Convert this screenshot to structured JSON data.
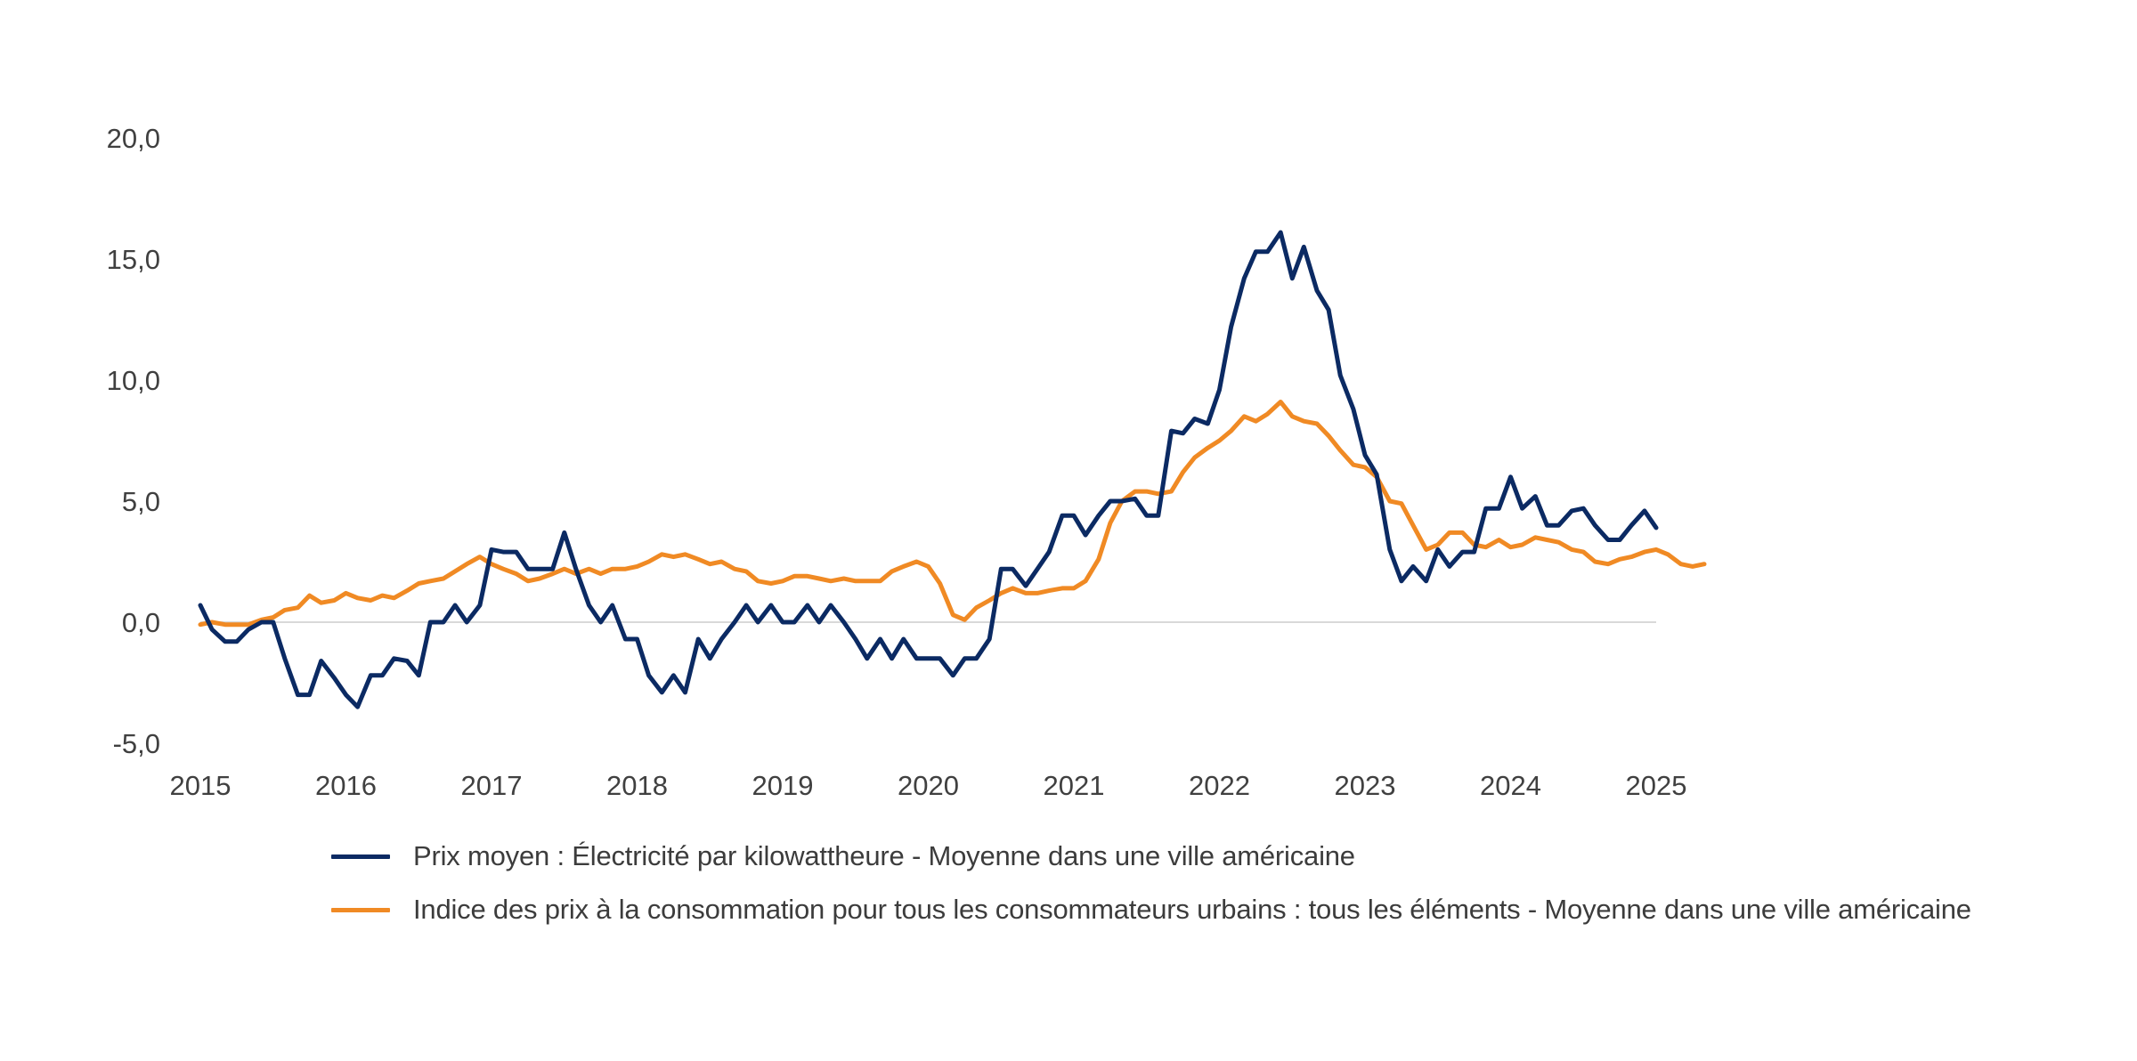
{
  "chart_data": {
    "type": "line",
    "title": "",
    "xlabel": "",
    "ylabel": "",
    "xlim": [
      2015,
      2025
    ],
    "ylim": [
      -5,
      20
    ],
    "yticks": [
      -5,
      0,
      5,
      10,
      15,
      20
    ],
    "ytick_labels": [
      "-5,0",
      "0,0",
      "5,0",
      "10,0",
      "15,0",
      "20,0"
    ],
    "xticks": [
      2015,
      2016,
      2017,
      2018,
      2019,
      2020,
      2021,
      2022,
      2023,
      2024,
      2025
    ],
    "xtick_labels": [
      "2015",
      "2016",
      "2017",
      "2018",
      "2019",
      "2020",
      "2021",
      "2022",
      "2023",
      "2024",
      "2025"
    ],
    "grid": false,
    "zero_line": true,
    "legend_position": "bottom",
    "series": [
      {
        "name": "Prix moyen : Électricité par kilowattheure - Moyenne dans une ville américaine",
        "color": "#0b2a63",
        "points": [
          [
            2015.0,
            0.7
          ],
          [
            2015.08,
            -0.3
          ],
          [
            2015.17,
            -0.8
          ],
          [
            2015.25,
            -0.8
          ],
          [
            2015.33,
            -0.3
          ],
          [
            2015.42,
            0.0
          ],
          [
            2015.5,
            0.0
          ],
          [
            2015.58,
            -1.5
          ],
          [
            2015.67,
            -3.0
          ],
          [
            2015.75,
            -3.0
          ],
          [
            2015.83,
            -1.6
          ],
          [
            2015.92,
            -2.3
          ],
          [
            2016.0,
            -3.0
          ],
          [
            2016.08,
            -3.5
          ],
          [
            2016.17,
            -2.2
          ],
          [
            2016.25,
            -2.2
          ],
          [
            2016.33,
            -1.5
          ],
          [
            2016.42,
            -1.6
          ],
          [
            2016.5,
            -2.2
          ],
          [
            2016.58,
            0.0
          ],
          [
            2016.67,
            0.0
          ],
          [
            2016.75,
            0.7
          ],
          [
            2016.83,
            0.0
          ],
          [
            2016.92,
            0.7
          ],
          [
            2017.0,
            3.0
          ],
          [
            2017.08,
            2.9
          ],
          [
            2017.17,
            2.9
          ],
          [
            2017.25,
            2.2
          ],
          [
            2017.33,
            2.2
          ],
          [
            2017.42,
            2.2
          ],
          [
            2017.5,
            3.7
          ],
          [
            2017.58,
            2.2
          ],
          [
            2017.67,
            0.7
          ],
          [
            2017.75,
            0.0
          ],
          [
            2017.83,
            0.7
          ],
          [
            2017.92,
            -0.7
          ],
          [
            2018.0,
            -0.7
          ],
          [
            2018.08,
            -2.2
          ],
          [
            2018.17,
            -2.9
          ],
          [
            2018.25,
            -2.2
          ],
          [
            2018.33,
            -2.9
          ],
          [
            2018.42,
            -0.7
          ],
          [
            2018.5,
            -1.5
          ],
          [
            2018.58,
            -0.7
          ],
          [
            2018.67,
            0.0
          ],
          [
            2018.75,
            0.7
          ],
          [
            2018.83,
            0.0
          ],
          [
            2018.92,
            0.7
          ],
          [
            2019.0,
            0.0
          ],
          [
            2019.08,
            0.0
          ],
          [
            2019.17,
            0.7
          ],
          [
            2019.25,
            0.0
          ],
          [
            2019.33,
            0.7
          ],
          [
            2019.42,
            0.0
          ],
          [
            2019.5,
            -0.7
          ],
          [
            2019.58,
            -1.5
          ],
          [
            2019.67,
            -0.7
          ],
          [
            2019.75,
            -1.5
          ],
          [
            2019.83,
            -0.7
          ],
          [
            2019.92,
            -1.5
          ],
          [
            2020.0,
            -1.5
          ],
          [
            2020.08,
            -1.5
          ],
          [
            2020.17,
            -2.2
          ],
          [
            2020.25,
            -1.5
          ],
          [
            2020.33,
            -1.5
          ],
          [
            2020.42,
            -0.7
          ],
          [
            2020.5,
            2.2
          ],
          [
            2020.58,
            2.2
          ],
          [
            2020.67,
            1.5
          ],
          [
            2020.75,
            2.2
          ],
          [
            2020.83,
            2.9
          ],
          [
            2020.92,
            4.4
          ],
          [
            2021.0,
            4.4
          ],
          [
            2021.08,
            3.6
          ],
          [
            2021.17,
            4.4
          ],
          [
            2021.25,
            5.0
          ],
          [
            2021.33,
            5.0
          ],
          [
            2021.42,
            5.1
          ],
          [
            2021.5,
            4.4
          ],
          [
            2021.58,
            4.4
          ],
          [
            2021.67,
            7.9
          ],
          [
            2021.75,
            7.8
          ],
          [
            2021.83,
            8.4
          ],
          [
            2021.92,
            8.2
          ],
          [
            2022.0,
            9.6
          ],
          [
            2022.08,
            12.2
          ],
          [
            2022.17,
            14.2
          ],
          [
            2022.25,
            15.3
          ],
          [
            2022.33,
            15.3
          ],
          [
            2022.42,
            16.1
          ],
          [
            2022.5,
            14.2
          ],
          [
            2022.58,
            15.5
          ],
          [
            2022.67,
            13.7
          ],
          [
            2022.75,
            12.9
          ],
          [
            2022.83,
            10.2
          ],
          [
            2022.92,
            8.8
          ],
          [
            2023.0,
            6.9
          ],
          [
            2023.08,
            6.1
          ],
          [
            2023.17,
            3.0
          ],
          [
            2023.25,
            1.7
          ],
          [
            2023.33,
            2.3
          ],
          [
            2023.42,
            1.7
          ],
          [
            2023.5,
            3.0
          ],
          [
            2023.58,
            2.3
          ],
          [
            2023.67,
            2.9
          ],
          [
            2023.75,
            2.9
          ],
          [
            2023.83,
            4.7
          ],
          [
            2023.92,
            4.7
          ],
          [
            2024.0,
            6.0
          ],
          [
            2024.08,
            4.7
          ],
          [
            2024.17,
            5.2
          ],
          [
            2024.25,
            4.0
          ],
          [
            2024.33,
            4.0
          ],
          [
            2024.42,
            4.6
          ],
          [
            2024.5,
            4.7
          ],
          [
            2024.58,
            4.0
          ],
          [
            2024.67,
            3.4
          ],
          [
            2024.75,
            3.4
          ],
          [
            2024.83,
            4.0
          ],
          [
            2024.92,
            4.6
          ],
          [
            2025.0,
            3.9
          ]
        ]
      },
      {
        "name": "Indice des prix à la consommation pour tous les consommateurs urbains : tous les éléments - Moyenne dans une ville américaine",
        "color": "#f08a24",
        "points": [
          [
            2015.0,
            -0.1
          ],
          [
            2015.08,
            0.0
          ],
          [
            2015.17,
            -0.1
          ],
          [
            2015.25,
            -0.1
          ],
          [
            2015.33,
            -0.1
          ],
          [
            2015.42,
            0.1
          ],
          [
            2015.5,
            0.2
          ],
          [
            2015.58,
            0.5
          ],
          [
            2015.67,
            0.6
          ],
          [
            2015.75,
            1.1
          ],
          [
            2015.83,
            0.8
          ],
          [
            2015.92,
            0.9
          ],
          [
            2016.0,
            1.2
          ],
          [
            2016.08,
            1.0
          ],
          [
            2016.17,
            0.9
          ],
          [
            2016.25,
            1.1
          ],
          [
            2016.33,
            1.0
          ],
          [
            2016.42,
            1.3
          ],
          [
            2016.5,
            1.6
          ],
          [
            2016.58,
            1.7
          ],
          [
            2016.67,
            1.8
          ],
          [
            2016.75,
            2.1
          ],
          [
            2016.83,
            2.4
          ],
          [
            2016.92,
            2.7
          ],
          [
            2017.0,
            2.4
          ],
          [
            2017.08,
            2.2
          ],
          [
            2017.17,
            2.0
          ],
          [
            2017.25,
            1.7
          ],
          [
            2017.33,
            1.8
          ],
          [
            2017.42,
            2.0
          ],
          [
            2017.5,
            2.2
          ],
          [
            2017.58,
            2.0
          ],
          [
            2017.67,
            2.2
          ],
          [
            2017.75,
            2.0
          ],
          [
            2017.83,
            2.2
          ],
          [
            2017.92,
            2.2
          ],
          [
            2018.0,
            2.3
          ],
          [
            2018.08,
            2.5
          ],
          [
            2018.17,
            2.8
          ],
          [
            2018.25,
            2.7
          ],
          [
            2018.33,
            2.8
          ],
          [
            2018.42,
            2.6
          ],
          [
            2018.5,
            2.4
          ],
          [
            2018.58,
            2.5
          ],
          [
            2018.67,
            2.2
          ],
          [
            2018.75,
            2.1
          ],
          [
            2018.83,
            1.7
          ],
          [
            2018.92,
            1.6
          ],
          [
            2019.0,
            1.7
          ],
          [
            2019.08,
            1.9
          ],
          [
            2019.17,
            1.9
          ],
          [
            2019.25,
            1.8
          ],
          [
            2019.33,
            1.7
          ],
          [
            2019.42,
            1.8
          ],
          [
            2019.5,
            1.7
          ],
          [
            2019.58,
            1.7
          ],
          [
            2019.67,
            1.7
          ],
          [
            2019.75,
            2.1
          ],
          [
            2019.83,
            2.3
          ],
          [
            2019.92,
            2.5
          ],
          [
            2020.0,
            2.3
          ],
          [
            2020.08,
            1.6
          ],
          [
            2020.17,
            0.3
          ],
          [
            2020.25,
            0.1
          ],
          [
            2020.33,
            0.6
          ],
          [
            2020.42,
            0.9
          ],
          [
            2020.5,
            1.2
          ],
          [
            2020.58,
            1.4
          ],
          [
            2020.67,
            1.2
          ],
          [
            2020.75,
            1.2
          ],
          [
            2020.83,
            1.3
          ],
          [
            2020.92,
            1.4
          ],
          [
            2021.0,
            1.4
          ],
          [
            2021.08,
            1.7
          ],
          [
            2021.17,
            2.6
          ],
          [
            2021.25,
            4.1
          ],
          [
            2021.33,
            5.0
          ],
          [
            2021.42,
            5.4
          ],
          [
            2021.5,
            5.4
          ],
          [
            2021.58,
            5.3
          ],
          [
            2021.67,
            5.4
          ],
          [
            2021.75,
            6.2
          ],
          [
            2021.83,
            6.8
          ],
          [
            2021.92,
            7.2
          ],
          [
            2022.0,
            7.5
          ],
          [
            2022.08,
            7.9
          ],
          [
            2022.17,
            8.5
          ],
          [
            2022.25,
            8.3
          ],
          [
            2022.33,
            8.6
          ],
          [
            2022.42,
            9.1
          ],
          [
            2022.5,
            8.5
          ],
          [
            2022.58,
            8.3
          ],
          [
            2022.67,
            8.2
          ],
          [
            2022.75,
            7.7
          ],
          [
            2022.83,
            7.1
          ],
          [
            2022.92,
            6.5
          ],
          [
            2023.0,
            6.4
          ],
          [
            2023.08,
            6.0
          ],
          [
            2023.17,
            5.0
          ],
          [
            2023.25,
            4.9
          ],
          [
            2023.33,
            4.0
          ],
          [
            2023.42,
            3.0
          ],
          [
            2023.5,
            3.2
          ],
          [
            2023.58,
            3.7
          ],
          [
            2023.67,
            3.7
          ],
          [
            2023.75,
            3.2
          ],
          [
            2023.83,
            3.1
          ],
          [
            2023.92,
            3.4
          ],
          [
            2024.0,
            3.1
          ],
          [
            2024.08,
            3.2
          ],
          [
            2024.17,
            3.5
          ],
          [
            2024.25,
            3.4
          ],
          [
            2024.33,
            3.3
          ],
          [
            2024.42,
            3.0
          ],
          [
            2024.5,
            2.9
          ],
          [
            2024.58,
            2.5
          ],
          [
            2024.67,
            2.4
          ],
          [
            2024.75,
            2.6
          ],
          [
            2024.83,
            2.7
          ],
          [
            2024.92,
            2.9
          ],
          [
            2025.0,
            3.0
          ],
          [
            2025.08,
            2.8
          ],
          [
            2025.17,
            2.4
          ],
          [
            2025.25,
            2.3
          ],
          [
            2025.33,
            2.4
          ]
        ]
      }
    ]
  }
}
